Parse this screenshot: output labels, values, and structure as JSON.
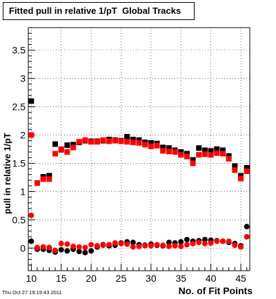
{
  "chart_data": {
    "type": "scatter",
    "title": "Fitted pull in relative 1/pT  Global Tracks",
    "xlabel": "No. of Fit Points",
    "ylabel": "pull in relative 1/pT",
    "timestamp": "Thu Oct 27 19:19:43 2011",
    "xlim": [
      9.5,
      46.5
    ],
    "ylim": [
      -0.4,
      3.9
    ],
    "x_ticks": [
      10,
      15,
      20,
      25,
      30,
      35,
      40,
      45
    ],
    "y_ticks": [
      0,
      0.5,
      1,
      1.5,
      2,
      2.5,
      3,
      3.5
    ],
    "grid": true,
    "x": [
      10,
      11,
      12,
      13,
      14,
      15,
      16,
      17,
      18,
      19,
      20,
      21,
      22,
      23,
      24,
      25,
      26,
      27,
      28,
      29,
      30,
      31,
      32,
      33,
      34,
      35,
      36,
      37,
      38,
      39,
      40,
      41,
      42,
      43,
      44,
      45,
      46
    ],
    "series": [
      {
        "marker": "square",
        "color": "#000000",
        "values": [
          2.6,
          1.15,
          1.26,
          1.28,
          1.84,
          1.74,
          1.82,
          1.83,
          1.87,
          1.9,
          1.89,
          1.89,
          1.9,
          1.92,
          1.91,
          1.9,
          1.97,
          1.92,
          1.91,
          1.87,
          1.86,
          1.85,
          1.78,
          1.77,
          1.73,
          1.7,
          1.67,
          1.56,
          1.77,
          1.73,
          1.72,
          1.75,
          1.73,
          1.63,
          1.45,
          1.28,
          1.42
        ]
      },
      {
        "marker": "square",
        "color": "#ff0000",
        "values": [
          2.0,
          1.15,
          1.22,
          1.22,
          1.67,
          1.75,
          1.7,
          1.78,
          1.88,
          1.91,
          1.88,
          1.88,
          1.91,
          1.89,
          1.9,
          1.89,
          1.88,
          1.87,
          1.86,
          1.83,
          1.8,
          1.81,
          1.72,
          1.71,
          1.7,
          1.65,
          1.62,
          1.5,
          1.65,
          1.66,
          1.65,
          1.68,
          1.67,
          1.58,
          1.38,
          1.23,
          1.36
        ]
      },
      {
        "marker": "circle",
        "color": "#000000",
        "values": [
          0.12,
          -0.02,
          -0.02,
          -0.04,
          -0.07,
          -0.03,
          -0.05,
          -0.02,
          -0.06,
          -0.08,
          -0.05,
          0.02,
          0.06,
          0.04,
          0.05,
          0.09,
          0.11,
          0.1,
          0.06,
          0.05,
          0.07,
          0.05,
          0.04,
          0.1,
          0.09,
          0.11,
          0.15,
          0.12,
          0.13,
          0.15,
          0.14,
          0.13,
          0.12,
          0.1,
          0.08,
          0.04,
          0.38
        ]
      },
      {
        "marker": "circle",
        "color": "#ff0000",
        "values": [
          0.58,
          0.01,
          0.02,
          0.01,
          -0.04,
          0.08,
          0.07,
          0.03,
          0.02,
          0.01,
          0.06,
          0.04,
          0.05,
          0.06,
          0.09,
          0.08,
          0.07,
          0.02,
          0.03,
          0.04,
          0.04,
          0.06,
          0.05,
          0.03,
          0.04,
          0.03,
          0.06,
          0.08,
          0.1,
          0.08,
          0.09,
          0.12,
          0.12,
          0.12,
          0.05,
          0.02,
          0.2
        ]
      }
    ]
  }
}
